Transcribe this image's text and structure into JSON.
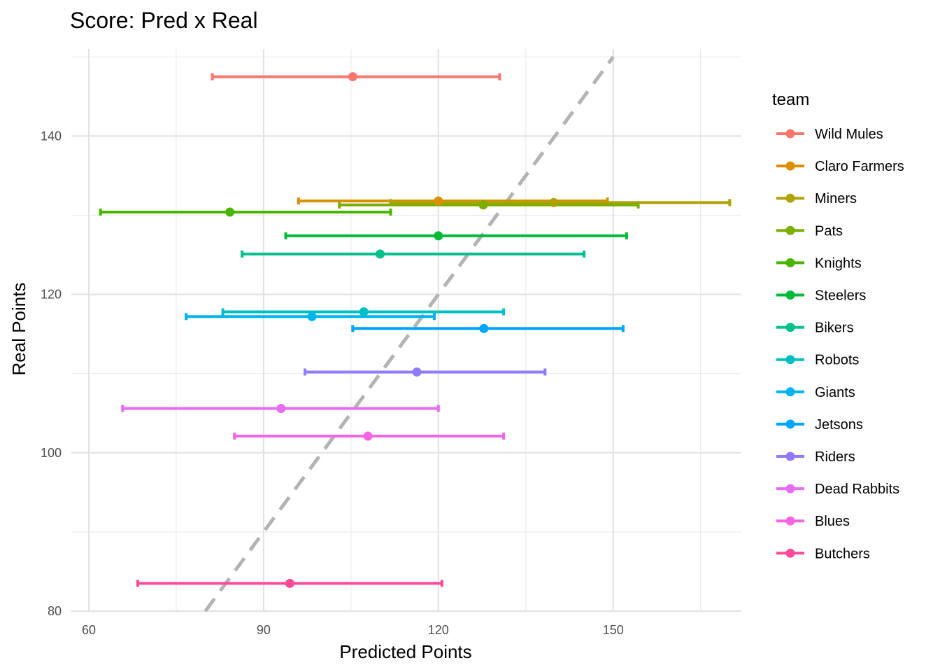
{
  "chart_data": {
    "type": "scatter",
    "title": "Score: Pred x Real",
    "xlabel": "Predicted Points",
    "ylabel": "Real Points",
    "xlim": [
      57,
      172
    ],
    "ylim": [
      80,
      151
    ],
    "x_ticks": [
      60,
      90,
      120,
      150
    ],
    "y_ticks": [
      80,
      100,
      120,
      140
    ],
    "x_tick_labels": [
      "60",
      "90",
      "120",
      "150"
    ],
    "y_tick_labels": [
      "80",
      "100",
      "120",
      "140"
    ],
    "grid": true,
    "legend_position": "right",
    "legend_title": "team",
    "reference_line": {
      "style": "dashed",
      "color": "#b3b3b3",
      "x": [
        80,
        150
      ],
      "y": [
        80,
        150
      ]
    },
    "series": [
      {
        "name": "Wild Mules",
        "color": "#F8766D",
        "x": 105.3,
        "y": 147.5,
        "xmin": 81.2,
        "xmax": 130.5
      },
      {
        "name": "Claro Farmers",
        "color": "#DB8E00",
        "x": 120.0,
        "y": 131.8,
        "xmin": 96.0,
        "xmax": 149.0
      },
      {
        "name": "Miners",
        "color": "#AEA200",
        "x": 139.8,
        "y": 131.6,
        "xmin": 111.8,
        "xmax": 170.0
      },
      {
        "name": "Pats",
        "color": "#7CAE00",
        "x": 127.7,
        "y": 131.3,
        "xmin": 103.0,
        "xmax": 154.3
      },
      {
        "name": "Knights",
        "color": "#49B500",
        "x": 84.2,
        "y": 130.4,
        "xmin": 62.0,
        "xmax": 111.8
      },
      {
        "name": "Steelers",
        "color": "#00BA38",
        "x": 120.0,
        "y": 127.4,
        "xmin": 93.8,
        "xmax": 152.3
      },
      {
        "name": "Bikers",
        "color": "#00C08B",
        "x": 110.0,
        "y": 125.1,
        "xmin": 86.3,
        "xmax": 145.0
      },
      {
        "name": "Robots",
        "color": "#00BFC4",
        "x": 107.2,
        "y": 117.8,
        "xmin": 83.0,
        "xmax": 131.2
      },
      {
        "name": "Giants",
        "color": "#00B4EF",
        "x": 98.3,
        "y": 117.2,
        "xmin": 76.7,
        "xmax": 119.3
      },
      {
        "name": "Jetsons",
        "color": "#00A5FF",
        "x": 127.8,
        "y": 115.7,
        "xmin": 105.3,
        "xmax": 151.7
      },
      {
        "name": "Riders",
        "color": "#8F7CFF",
        "x": 116.3,
        "y": 110.2,
        "xmin": 97.1,
        "xmax": 138.3
      },
      {
        "name": "Dead Rabbits",
        "color": "#E76BF3",
        "x": 93.0,
        "y": 105.6,
        "xmin": 65.8,
        "xmax": 120.0
      },
      {
        "name": "Blues",
        "color": "#F564E3",
        "x": 107.9,
        "y": 102.1,
        "xmin": 85.0,
        "xmax": 131.2
      },
      {
        "name": "Butchers",
        "color": "#FF4A98",
        "x": 94.5,
        "y": 83.5,
        "xmin": 68.4,
        "xmax": 120.6
      }
    ]
  }
}
